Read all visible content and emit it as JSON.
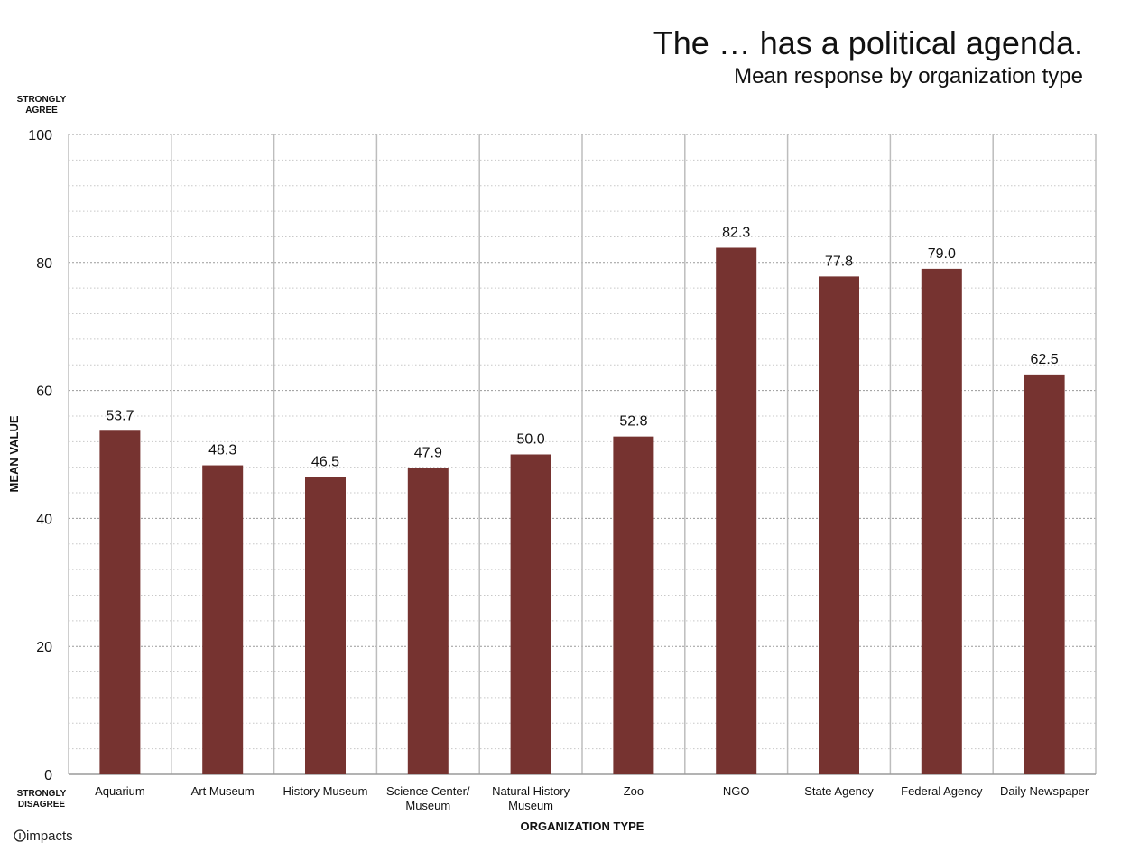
{
  "chart_data": {
    "type": "bar",
    "title": "The … has a political agenda.",
    "subtitle": "Mean response by organization type",
    "categories": [
      [
        "Aquarium"
      ],
      [
        "Art Museum"
      ],
      [
        "History Museum"
      ],
      [
        "Science Center/",
        "Museum"
      ],
      [
        "Natural History",
        "Museum"
      ],
      [
        "Zoo"
      ],
      [
        "NGO"
      ],
      [
        "State Agency"
      ],
      [
        "Federal Agency"
      ],
      [
        "Daily Newspaper"
      ]
    ],
    "values": [
      53.7,
      48.3,
      46.5,
      47.9,
      50.0,
      52.8,
      82.3,
      77.8,
      79.0,
      62.5
    ],
    "value_labels": [
      "53.7",
      "48.3",
      "46.5",
      "47.9",
      "50.0",
      "52.8",
      "82.3",
      "77.8",
      "79.0",
      "62.5"
    ],
    "xlabel": "ORGANIZATION TYPE",
    "ylabel": "MEAN VALUE",
    "ylim": [
      0,
      100
    ],
    "yticks": [
      0,
      20,
      40,
      60,
      80,
      100
    ],
    "ytick_labels": [
      "0",
      "20",
      "40",
      "60",
      "80",
      "100"
    ],
    "y_top_anchor": [
      "STRONGLY",
      "AGREE"
    ],
    "y_bottom_anchor": [
      "STRONGLY",
      "DISAGREE"
    ],
    "bar_color": "#763330",
    "grid": true,
    "legend": "none"
  },
  "branding": {
    "logo_text": "impacts"
  }
}
